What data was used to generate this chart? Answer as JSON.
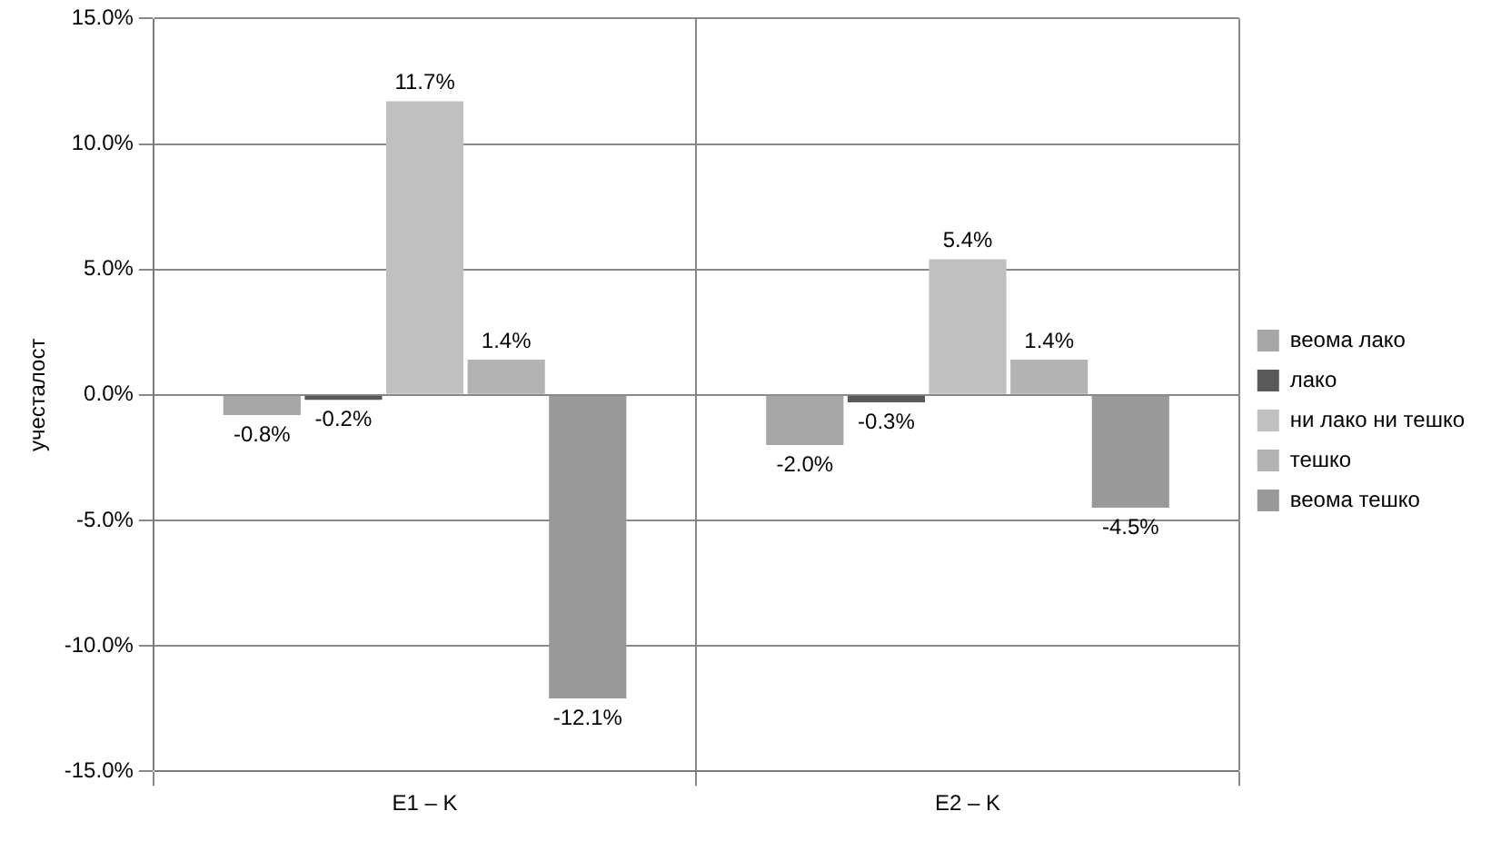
{
  "chart_data": {
    "type": "bar",
    "ylabel": "учесталост",
    "categories": [
      "E1 – K",
      "E2 – K"
    ],
    "series": [
      {
        "name": "веома лако",
        "color": "#a6a6a6",
        "values": [
          -0.8,
          -2.0
        ],
        "value_labels": [
          "-0.8%",
          "-2.0%"
        ]
      },
      {
        "name": "лако",
        "color": "#595959",
        "values": [
          -0.2,
          -0.3
        ],
        "value_labels": [
          "-0.2%",
          "-0.3%"
        ]
      },
      {
        "name": "ни лако ни тешко",
        "color": "#c0c0c0",
        "values": [
          11.7,
          5.4
        ],
        "value_labels": [
          "11.7%",
          "5.4%"
        ]
      },
      {
        "name": "тешко",
        "color": "#b3b3b3",
        "values": [
          1.4,
          1.4
        ],
        "value_labels": [
          "1.4%",
          "1.4%"
        ]
      },
      {
        "name": "веома тешко",
        "color": "#999999",
        "values": [
          -12.1,
          -4.5
        ],
        "value_labels": [
          "-12.1%",
          "-4.5%"
        ]
      }
    ],
    "ylim": [
      -15,
      15
    ],
    "yticks": [
      {
        "value": -15,
        "label": "-15.0%"
      },
      {
        "value": -10,
        "label": "-10.0%"
      },
      {
        "value": -5,
        "label": "-5.0%"
      },
      {
        "value": 0,
        "label": "0.0%"
      },
      {
        "value": 5,
        "label": "5.0%"
      },
      {
        "value": 10,
        "label": "10.0%"
      },
      {
        "value": 15,
        "label": "15.0%"
      }
    ],
    "grid": true,
    "legend": "right"
  }
}
